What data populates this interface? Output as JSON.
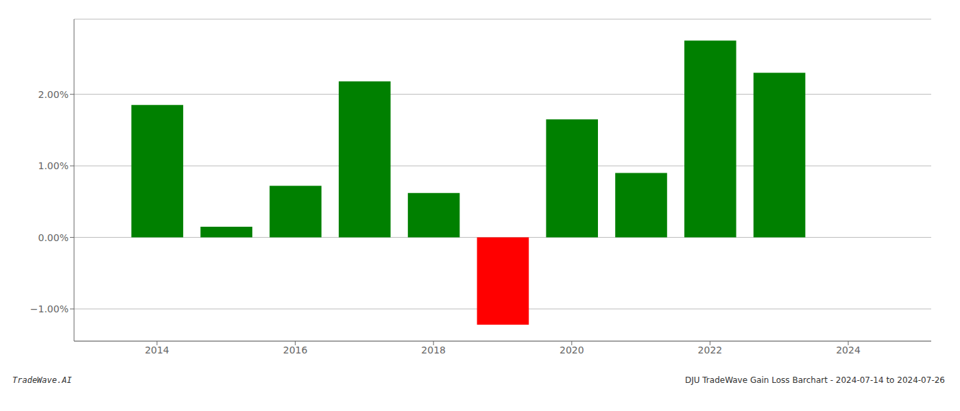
{
  "chart_data": {
    "type": "bar",
    "x": [
      2014,
      2015,
      2016,
      2017,
      2018,
      2019,
      2020,
      2021,
      2022,
      2023
    ],
    "values": [
      1.85,
      0.15,
      0.72,
      2.18,
      0.62,
      -1.22,
      1.65,
      0.9,
      2.75,
      2.3
    ],
    "colors": [
      "#008000",
      "#008000",
      "#008000",
      "#008000",
      "#008000",
      "#ff0000",
      "#008000",
      "#008000",
      "#008000",
      "#008000"
    ],
    "xlim": [
      2012.8,
      2025.2
    ],
    "xticks": [
      2014,
      2016,
      2018,
      2020,
      2022,
      2024
    ],
    "ylim": [
      -1.45,
      3.05
    ],
    "yticks": [
      {
        "value": -1.0,
        "label": "−1.00%"
      },
      {
        "value": 0.0,
        "label": "0.00%"
      },
      {
        "value": 1.0,
        "label": "1.00%"
      },
      {
        "value": 2.0,
        "label": "2.00%"
      }
    ],
    "grid": "y",
    "annotations": [
      "TradeWave.AI",
      "DJU TradeWave Gain Loss Barchart - 2024-07-14 to 2024-07-26"
    ]
  }
}
